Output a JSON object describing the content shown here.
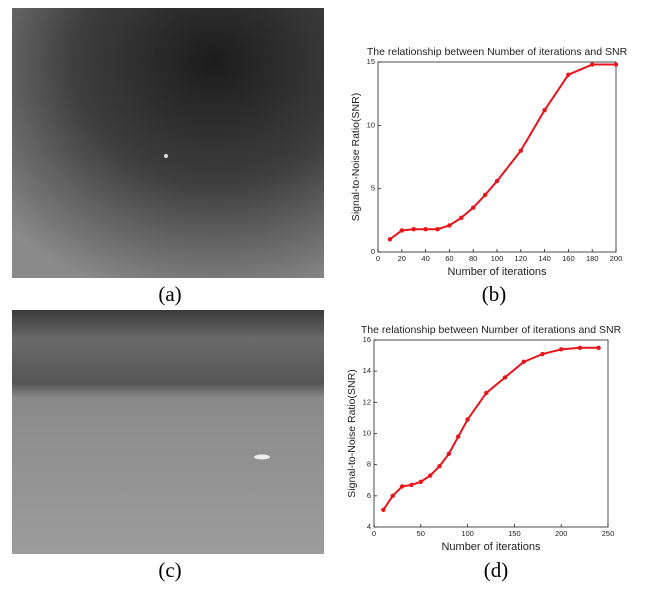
{
  "chart_data": [
    {
      "type": "line",
      "title": "The relationship between Number of iterations and SNR",
      "xlabel": "Number of iterations",
      "ylabel": "Signal-to-Noise Ratio(SNR)",
      "x": [
        10,
        20,
        30,
        40,
        50,
        60,
        70,
        80,
        90,
        100,
        120,
        140,
        160,
        180,
        200
      ],
      "values": [
        1.0,
        1.7,
        1.8,
        1.8,
        1.8,
        2.1,
        2.7,
        3.5,
        4.5,
        5.6,
        8.0,
        11.2,
        14.0,
        14.8,
        14.8
      ],
      "color": "#e8141b",
      "xlim": [
        0,
        200
      ],
      "xticks": [
        0,
        20,
        40,
        60,
        80,
        100,
        120,
        140,
        160,
        180,
        200
      ],
      "ylim": [
        0,
        15
      ],
      "yticks": [
        0,
        5,
        10,
        15
      ]
    },
    {
      "type": "line",
      "title": "The relationship between Number of iterations and SNR",
      "xlabel": "Number of iterations",
      "ylabel": "Signal-to-Noise Ratio(SNR)",
      "x": [
        10,
        20,
        30,
        40,
        50,
        60,
        70,
        80,
        90,
        100,
        120,
        140,
        160,
        180,
        200,
        220,
        240
      ],
      "values": [
        5.1,
        6.0,
        6.6,
        6.7,
        6.9,
        7.3,
        7.9,
        8.7,
        9.8,
        10.9,
        12.6,
        13.6,
        14.6,
        15.1,
        15.4,
        15.5,
        15.5
      ],
      "color": "#e8141b",
      "xlim": [
        0,
        250
      ],
      "xticks": [
        0,
        50,
        100,
        150,
        200,
        250
      ],
      "ylim": [
        4,
        16
      ],
      "yticks": [
        4,
        6,
        8,
        10,
        12,
        14,
        16
      ]
    }
  ],
  "captions": [
    "(a)",
    "(b)",
    "(c)",
    "(d)"
  ]
}
